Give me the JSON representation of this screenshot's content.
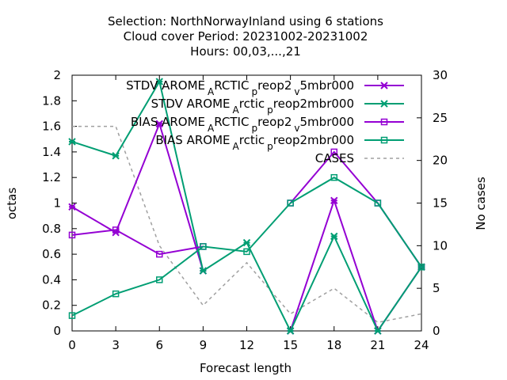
{
  "chart_data": {
    "type": "line",
    "title_lines": [
      "Selection: NorthNorwayInland using     6 stations",
      "Cloud cover   Period: 20231002-20231002",
      "Hours:  00,03,...,21"
    ],
    "xlabel": "Forecast length",
    "ylabel": "octas",
    "y2label": "No cases",
    "x": [
      0,
      3,
      6,
      9,
      12,
      15,
      18,
      21,
      24
    ],
    "xlim": [
      0,
      24
    ],
    "ylim": [
      0,
      2
    ],
    "y2lim": [
      0,
      30
    ],
    "x_ticks": [
      "0",
      "3",
      "6",
      "9",
      "12",
      "15",
      "18",
      "21",
      "24"
    ],
    "y_ticks": [
      "0",
      "0.2",
      "0.4",
      "0.6",
      "0.8",
      "1",
      "1.2",
      "1.4",
      "1.6",
      "1.8",
      "2"
    ],
    "y2_ticks": [
      "0",
      "5",
      "10",
      "15",
      "20",
      "25",
      "30"
    ],
    "grid": false,
    "legend_position": "top-right",
    "series": [
      {
        "legend": [
          "STDV AROME",
          "A",
          "RCTIC",
          "p",
          "reop2",
          "v",
          "5mbr000"
        ],
        "color": "#9400d3",
        "marker": "x",
        "axis": "y1",
        "values": [
          0.97,
          0.77,
          1.62,
          0.47,
          null,
          0.0,
          1.02,
          0.0,
          0.5
        ]
      },
      {
        "legend": [
          "STDV AROME",
          "A",
          "rctic",
          "p",
          "reop2mbr000"
        ],
        "color": "#009e73",
        "marker": "x",
        "axis": "y1",
        "values": [
          1.48,
          1.37,
          1.95,
          0.47,
          0.69,
          0.0,
          0.74,
          0.0,
          0.5
        ]
      },
      {
        "legend": [
          "BIAS AROME",
          "A",
          "RCTIC",
          "p",
          "reop2",
          "v",
          "5mbr000"
        ],
        "color": "#9400d3",
        "marker": "square",
        "axis": "y1",
        "values": [
          0.75,
          0.79,
          0.6,
          0.66,
          null,
          1.0,
          1.4,
          1.0,
          0.5
        ]
      },
      {
        "legend": [
          "BIAS AROME",
          "A",
          "rctic",
          "p",
          "reop2mbr000"
        ],
        "color": "#009e73",
        "marker": "square",
        "axis": "y1",
        "values": [
          0.12,
          0.29,
          0.4,
          0.66,
          0.62,
          1.0,
          1.2,
          1.0,
          0.5
        ]
      },
      {
        "legend": [
          "CASES"
        ],
        "color": "#a0a0a0",
        "marker": "none",
        "dashed": true,
        "axis": "y2",
        "values": [
          24,
          24,
          10,
          3,
          8,
          2,
          5,
          1,
          2
        ]
      }
    ]
  }
}
